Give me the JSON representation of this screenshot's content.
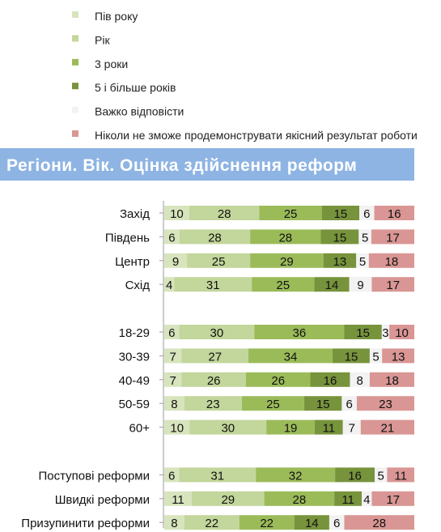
{
  "chart_data": {
    "type": "bar",
    "orientation": "horizontal",
    "stacked": true,
    "title": "Регіони. Вік. Оцінка здійснення реформ",
    "xlabel": "",
    "ylabel": "",
    "xlim": [
      0,
      100
    ],
    "grid": false,
    "legend_position": "top",
    "categories": [
      "Захід",
      "Південь",
      "Центр",
      "Схід",
      "18-29",
      "30-39",
      "40-49",
      "50-59",
      "60+",
      "Поступові реформи",
      "Швидкі реформи",
      "Призупинити реформи"
    ],
    "groups": [
      [
        0,
        1,
        2,
        3
      ],
      [
        4,
        5,
        6,
        7,
        8
      ],
      [
        9,
        10,
        11
      ]
    ],
    "series": [
      {
        "name": "Пів року",
        "color": "#d7e4bd",
        "values": [
          10,
          6,
          9,
          4,
          6,
          7,
          7,
          8,
          10,
          6,
          11,
          8
        ]
      },
      {
        "name": "Рік",
        "color": "#c3d69b",
        "values": [
          28,
          28,
          25,
          31,
          30,
          27,
          26,
          23,
          30,
          31,
          29,
          22
        ]
      },
      {
        "name": "3 роки",
        "color": "#9bbb59",
        "values": [
          25,
          28,
          29,
          25,
          36,
          34,
          26,
          25,
          19,
          32,
          28,
          22
        ]
      },
      {
        "name": "5 і більше років",
        "color": "#77933c",
        "values": [
          15,
          15,
          13,
          14,
          15,
          15,
          16,
          15,
          11,
          16,
          11,
          14
        ]
      },
      {
        "name": "Важко відповісти",
        "color": "#f2f2f2",
        "values": [
          6,
          5,
          5,
          9,
          3,
          5,
          8,
          6,
          7,
          5,
          4,
          6
        ]
      },
      {
        "name": "Ніколи не зможе продемонструвати якісний результат роботи",
        "color": "#d99694",
        "values": [
          16,
          17,
          18,
          17,
          10,
          13,
          18,
          23,
          21,
          11,
          17,
          28
        ]
      }
    ]
  }
}
